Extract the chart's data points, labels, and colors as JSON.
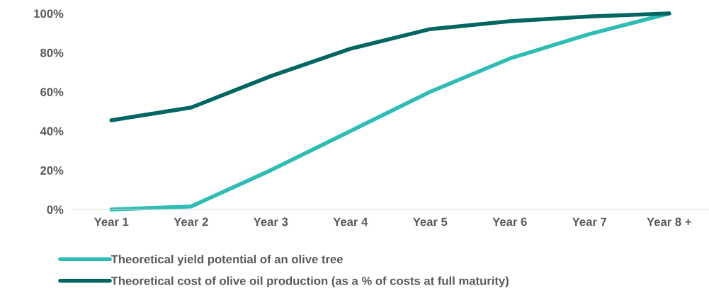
{
  "chart_data": {
    "type": "line",
    "categories": [
      "Year 1",
      "Year 2",
      "Year 3",
      "Year 4",
      "Year 5",
      "Year 6",
      "Year 7",
      "Year 8 +"
    ],
    "series": [
      {
        "name": "Theoretical yield potential of an olive tree",
        "color": "#2ebdb5",
        "values": [
          0,
          1.5,
          20,
          40,
          60,
          77,
          89.5,
          100
        ]
      },
      {
        "name": "Theoretical cost of olive oil production (as a % of costs at full maturity)",
        "color": "#006661",
        "values": [
          45.5,
          52,
          68,
          82,
          92,
          96,
          98.5,
          100
        ]
      }
    ],
    "ylim": [
      0,
      100
    ],
    "yticks": [
      {
        "value": 0,
        "label": "0%"
      },
      {
        "value": 20,
        "label": "20%"
      },
      {
        "value": 40,
        "label": "40%"
      },
      {
        "value": 60,
        "label": "60%"
      },
      {
        "value": 80,
        "label": "80%"
      },
      {
        "value": 100,
        "label": "100%"
      }
    ],
    "grid": false,
    "legend": "bottom",
    "marker": "none",
    "line_style": "solid"
  }
}
